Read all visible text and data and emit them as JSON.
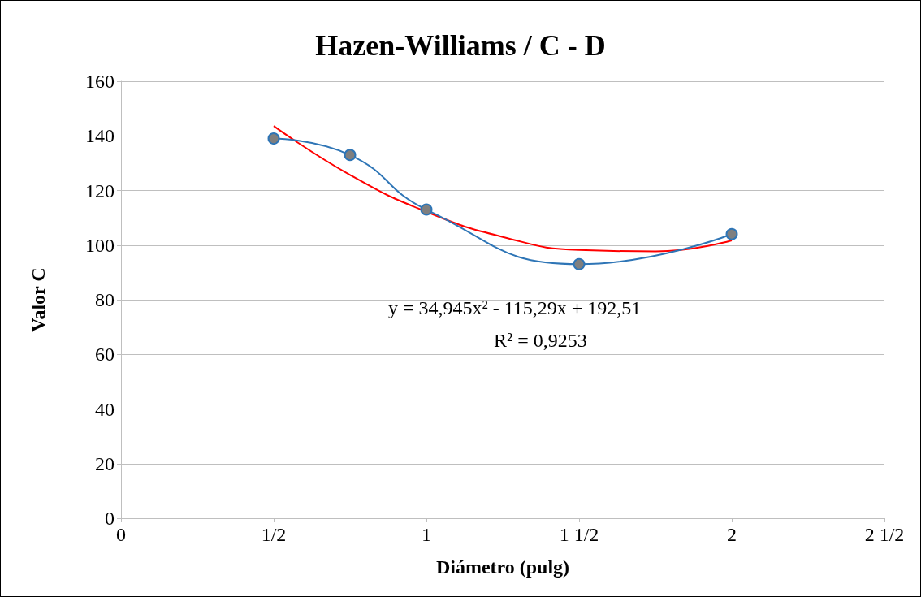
{
  "chart_data": {
    "type": "line",
    "title": "Hazen-Williams / C - D",
    "xlabel": "Diámetro (pulg)",
    "ylabel": "Valor C",
    "x": [
      0.5,
      0.75,
      1,
      1.5,
      2
    ],
    "xlim": [
      0,
      2.5
    ],
    "xticks": [
      0,
      {
        "value": 0.5,
        "label": "1/2"
      },
      1,
      {
        "value": 1.5,
        "label": "1 1/2"
      },
      2,
      {
        "value": 2.5,
        "label": "2 1/2"
      }
    ],
    "ylim": [
      0,
      160
    ],
    "yticks": [
      0,
      20,
      40,
      60,
      80,
      100,
      120,
      140,
      160
    ],
    "grid": "y",
    "marker": "circle",
    "series": [
      {
        "color": "#2e75b6",
        "values": [
          139,
          133,
          113,
          93,
          104
        ]
      },
      {
        "type": "line",
        "marker": "none",
        "color": "#ff0000",
        "x": [
          0.5,
          0.75,
          1,
          1.25,
          1.5,
          1.75,
          2
        ],
        "values": [
          143.6,
          125.7,
          112.2,
          103,
          98.2,
          97.7,
          101.7
        ]
      }
    ],
    "annotations": [
      "y = 34,945x² - 115,29x + 192,51",
      "R² = 0,9253"
    ]
  }
}
